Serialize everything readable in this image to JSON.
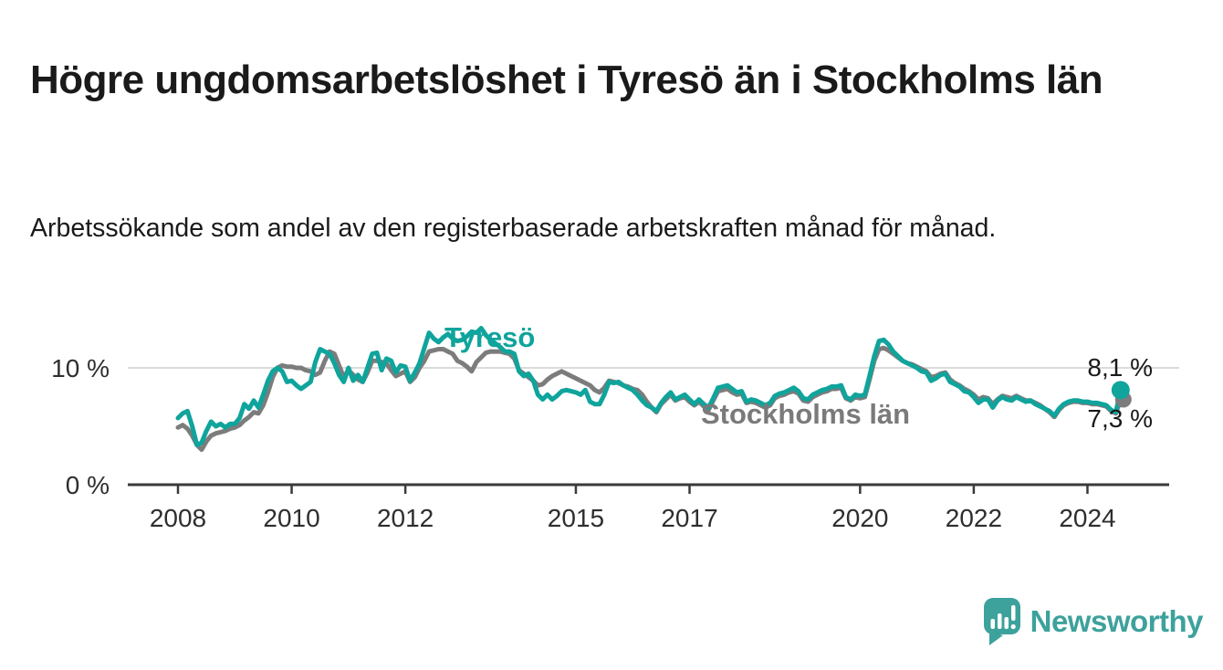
{
  "header": {
    "title": "Högre ungdomsarbetslöshet i Tyresö än i Stockholms län",
    "subtitle": "Arbetssökande som andel av den registerbaserade arbetskraften månad för månad."
  },
  "chart_data": {
    "type": "line",
    "unit": "percent of registered labour force",
    "x_interval": "month",
    "x_start": "2008-01",
    "x_end": "2024-08",
    "x_ticks": [
      2008,
      2010,
      2012,
      2015,
      2017,
      2020,
      2022,
      2024
    ],
    "y_ticks": [
      {
        "value": 10,
        "label": "10 %"
      },
      {
        "value": 0,
        "label": "0 %"
      }
    ],
    "ylim": [
      0,
      15.5
    ],
    "grid": "single horizontal gridline at 10 %",
    "legend_position": "labels drawn on chart next to lines",
    "series": [
      {
        "name": "Tyresö",
        "color": "#0FA49C",
        "end_value": 8.1,
        "end_label": "8,1 %",
        "values": [
          5.7,
          6.1,
          6.3,
          5.0,
          3.4,
          3.6,
          4.6,
          5.4,
          5.0,
          5.2,
          4.9,
          5.2,
          5.2,
          5.7,
          6.9,
          6.5,
          7.2,
          6.6,
          7.7,
          8.9,
          9.7,
          10.0,
          9.7,
          8.8,
          8.9,
          8.5,
          8.2,
          8.5,
          8.8,
          10.5,
          11.6,
          11.4,
          11.2,
          10.4,
          9.4,
          8.8,
          10.0,
          8.9,
          9.4,
          8.8,
          10.0,
          11.2,
          11.3,
          9.8,
          10.8,
          10.6,
          9.6,
          10.2,
          10.1,
          8.9,
          9.6,
          10.4,
          11.7,
          13.0,
          12.5,
          12.2,
          12.6,
          12.9,
          12.5,
          12.3,
          12.4,
          12.7,
          13.1,
          13.0,
          13.4,
          12.8,
          12.4,
          12.1,
          11.8,
          11.4,
          11.4,
          11.2,
          9.7,
          9.3,
          9.5,
          8.9,
          7.7,
          7.3,
          7.7,
          7.3,
          7.6,
          8.0,
          8.1,
          8.0,
          7.9,
          7.7,
          8.1,
          7.1,
          6.9,
          6.9,
          7.7,
          8.8,
          8.7,
          8.8,
          8.5,
          8.3,
          8.1,
          7.7,
          7.2,
          6.8,
          6.6,
          6.3,
          7.0,
          7.5,
          7.9,
          7.3,
          7.5,
          7.7,
          7.3,
          6.9,
          7.3,
          6.9,
          6.6,
          7.4,
          8.3,
          8.4,
          8.5,
          8.2,
          7.9,
          8.0,
          7.1,
          7.3,
          7.2,
          7.0,
          6.8,
          7.0,
          7.6,
          7.8,
          7.9,
          8.1,
          8.3,
          8.0,
          7.4,
          7.3,
          7.7,
          7.9,
          8.1,
          8.2,
          8.4,
          8.4,
          8.5,
          7.5,
          7.3,
          7.7,
          7.6,
          7.7,
          9.3,
          11.0,
          12.3,
          12.4,
          12.0,
          11.4,
          11.0,
          10.6,
          10.4,
          10.2,
          10.0,
          9.7,
          9.6,
          8.9,
          9.1,
          9.4,
          9.5,
          8.8,
          8.6,
          8.4,
          8.0,
          7.9,
          7.5,
          7.0,
          7.3,
          7.3,
          6.6,
          7.2,
          7.5,
          7.3,
          7.2,
          7.5,
          7.3,
          7.1,
          7.2,
          6.9,
          6.7,
          6.5,
          6.3,
          5.9,
          6.5,
          6.9,
          7.1,
          7.2,
          7.2,
          7.1,
          7.1,
          7.0,
          7.0,
          6.9,
          6.8,
          6.4,
          6.2,
          8.1
        ]
      },
      {
        "name": "Stockholms län",
        "color": "#7C7C7C",
        "end_value": 7.3,
        "end_label": "7,3 %",
        "values": [
          4.9,
          5.1,
          4.8,
          4.2,
          3.4,
          3.0,
          3.7,
          4.2,
          4.4,
          4.5,
          4.6,
          4.8,
          4.9,
          5.1,
          5.5,
          5.8,
          6.2,
          6.1,
          6.8,
          7.9,
          9.2,
          10.0,
          10.2,
          10.1,
          10.1,
          10.0,
          10.0,
          9.8,
          9.7,
          9.4,
          9.6,
          10.6,
          11.4,
          11.2,
          10.2,
          9.2,
          9.8,
          9.4,
          9.0,
          8.8,
          9.6,
          10.6,
          10.6,
          10.5,
          10.4,
          9.8,
          9.3,
          9.5,
          9.7,
          8.8,
          9.2,
          10.0,
          10.6,
          11.4,
          11.5,
          11.6,
          11.6,
          11.4,
          11.2,
          10.6,
          10.4,
          10.1,
          9.7,
          10.5,
          10.9,
          11.3,
          11.4,
          11.4,
          11.4,
          11.3,
          11.2,
          10.8,
          9.8,
          9.5,
          9.2,
          8.9,
          8.5,
          8.6,
          9.0,
          9.3,
          9.5,
          9.7,
          9.5,
          9.3,
          9.1,
          8.9,
          8.7,
          8.5,
          8.1,
          7.9,
          8.3,
          8.9,
          8.8,
          8.7,
          8.5,
          8.4,
          8.2,
          8.1,
          7.7,
          7.1,
          6.6,
          6.2,
          6.9,
          7.3,
          7.7,
          7.2,
          7.4,
          7.5,
          7.1,
          6.8,
          7.1,
          6.7,
          6.4,
          7.2,
          8.0,
          8.1,
          8.2,
          7.9,
          7.7,
          7.8,
          7.0,
          7.1,
          7.0,
          6.8,
          6.6,
          6.8,
          7.4,
          7.6,
          7.7,
          7.9,
          8.0,
          7.8,
          7.2,
          7.1,
          7.5,
          7.7,
          7.9,
          8.0,
          8.2,
          8.2,
          8.3,
          7.4,
          7.2,
          7.5,
          7.4,
          7.5,
          9.0,
          10.6,
          11.6,
          11.7,
          11.5,
          11.2,
          10.9,
          10.6,
          10.4,
          10.3,
          10.1,
          9.9,
          9.7,
          9.2,
          9.3,
          9.5,
          9.6,
          9.0,
          8.7,
          8.5,
          8.2,
          8.0,
          7.7,
          7.3,
          7.5,
          7.4,
          6.9,
          7.3,
          7.6,
          7.5,
          7.4,
          7.6,
          7.4,
          7.2,
          7.2,
          7.0,
          6.8,
          6.5,
          6.2,
          5.8,
          6.4,
          6.8,
          7.0,
          7.1,
          7.1,
          7.0,
          7.0,
          6.9,
          6.9,
          6.8,
          6.7,
          6.3,
          6.1,
          7.3
        ]
      }
    ]
  },
  "logo": {
    "text": "Newsworthy",
    "icon": "newsworthy-speech-bubble-bar-chart-icon",
    "color": "#3DA19C"
  },
  "colors": {
    "background": "#FFFFFF",
    "title": "#1A1A1A",
    "axis": "#3A3A3A",
    "gridline": "#DBDBDB",
    "tick_label": "#2E2E2E",
    "value_label": "#1A1A1A"
  }
}
